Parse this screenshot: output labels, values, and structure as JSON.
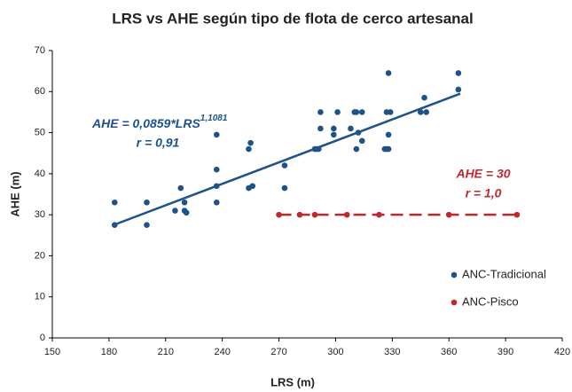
{
  "chart_data": {
    "type": "scatter",
    "title": "LRS vs AHE según tipo de flota de cerco artesanal",
    "x_label": "LRS (m)",
    "y_label": "AHE (m)",
    "xlim": [
      150,
      420
    ],
    "xticks": [
      150,
      180,
      210,
      240,
      270,
      300,
      330,
      360,
      390,
      420
    ],
    "ylim": [
      0,
      70
    ],
    "yticks": [
      0,
      10,
      20,
      30,
      40,
      50,
      60,
      70
    ],
    "grid": false,
    "legend": "lower right",
    "series": [
      {
        "name": "ANC-Tradicional",
        "color": "#1f5289",
        "x": [
          183,
          183,
          200,
          200,
          215,
          218,
          220,
          220,
          221,
          237,
          237,
          237,
          237,
          254,
          254,
          255,
          256,
          273,
          273,
          289,
          290,
          291,
          292,
          292,
          299,
          299,
          301,
          308,
          310,
          311,
          311,
          312,
          314,
          314,
          326,
          327,
          327,
          328,
          328,
          328,
          329,
          345,
          347,
          348,
          365,
          365
        ],
        "values": [
          33,
          27.5,
          33,
          27.5,
          31,
          36.5,
          33,
          31,
          30.5,
          49.5,
          41,
          37,
          33,
          46,
          36.5,
          47.5,
          37,
          42,
          36.5,
          46,
          46,
          46,
          51,
          55,
          51,
          49.5,
          55,
          51,
          55,
          55,
          46,
          50,
          55,
          48,
          46,
          46,
          55,
          64.5,
          49.5,
          46,
          55,
          55,
          58.5,
          55,
          64.5,
          60.5
        ],
        "trendline": {
          "x": [
            183,
            366
          ],
          "values": [
            27.6,
            59.5
          ]
        },
        "annotation": "AHE = 0,0859*LRS",
        "annotation_sup": "1,1081",
        "r_label": "r = 0,91"
      },
      {
        "name": "ANC-Pisco",
        "color": "#c0282d",
        "x": [
          270,
          281,
          289,
          306,
          323,
          360,
          396
        ],
        "values": [
          30,
          30,
          30,
          30,
          30,
          30,
          30
        ],
        "trendline": {
          "x": [
            270,
            396
          ],
          "values": [
            30,
            30
          ]
        },
        "annotation": "AHE = 30",
        "r_label": "r = 1,0"
      }
    ]
  }
}
